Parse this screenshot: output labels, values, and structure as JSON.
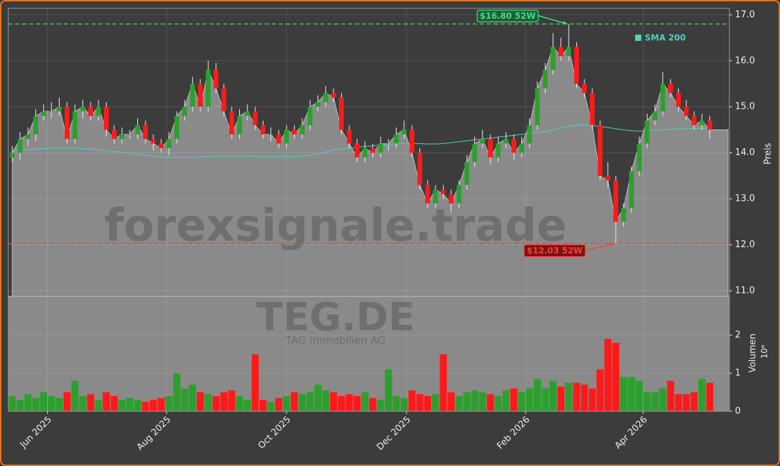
{
  "chart_data": {
    "type": "candlestick",
    "symbol": "TEG.DE",
    "company": "TAG Immobilien AG",
    "watermark": "forexsignale.trade",
    "ylabel": "Preis",
    "up_color": "#2ca02c",
    "down_color": "#ff1a1a",
    "area_color": "#8a8a8a",
    "grid": true,
    "open": [
      13.9,
      14.0,
      14.3,
      14.4,
      14.8,
      14.9,
      14.9,
      15.0,
      14.3,
      14.9,
      15.0,
      14.8,
      15.0,
      14.5,
      14.3,
      14.4,
      14.4,
      14.6,
      14.3,
      14.2,
      14.1,
      14.3,
      14.8,
      15.0,
      15.5,
      15.0,
      15.8,
      15.4,
      14.9,
      14.4,
      14.8,
      14.9,
      14.6,
      14.4,
      14.4,
      14.2,
      14.5,
      14.4,
      14.6,
      15.0,
      15.1,
      15.3,
      15.2,
      14.5,
      14.2,
      13.9,
      14.1,
      14.0,
      14.2,
      14.2,
      14.4,
      14.5,
      14.0,
      13.3,
      12.9,
      13.2,
      13.1,
      12.9,
      13.3,
      13.8,
      14.2,
      14.3,
      13.9,
      14.2,
      14.3,
      14.0,
      14.2,
      14.6,
      15.4,
      15.8,
      16.3,
      16.1,
      16.3,
      15.5,
      15.3,
      14.6,
      13.5,
      13.4,
      12.5,
      12.8,
      13.6,
      14.2,
      14.7,
      14.9,
      15.5,
      15.3,
      15.0,
      14.8,
      14.6,
      14.7
    ],
    "high": [
      14.15,
      14.45,
      14.55,
      14.95,
      15.05,
      15.1,
      15.2,
      15.1,
      15.05,
      15.15,
      15.1,
      15.15,
      15.1,
      14.6,
      14.55,
      14.5,
      14.75,
      14.7,
      14.4,
      14.3,
      14.45,
      14.9,
      15.15,
      15.65,
      15.6,
      16.0,
      15.95,
      15.5,
      15.0,
      14.95,
      15.05,
      15.0,
      14.7,
      14.55,
      14.5,
      14.6,
      14.6,
      14.75,
      15.15,
      15.25,
      15.45,
      15.4,
      15.3,
      14.6,
      14.3,
      14.25,
      14.2,
      14.35,
      14.3,
      14.55,
      14.7,
      14.6,
      14.1,
      13.4,
      13.3,
      13.3,
      13.2,
      13.4,
      13.95,
      14.35,
      14.5,
      14.4,
      14.35,
      14.45,
      14.4,
      14.35,
      14.75,
      15.55,
      15.95,
      16.6,
      16.5,
      16.8,
      16.4,
      15.6,
      15.4,
      14.7,
      13.8,
      13.5,
      12.9,
      13.7,
      14.35,
      14.85,
      15.05,
      15.75,
      15.6,
      15.4,
      15.15,
      14.9,
      14.85,
      14.8
    ],
    "low": [
      13.8,
      13.85,
      14.15,
      14.25,
      14.7,
      14.75,
      14.8,
      14.2,
      14.2,
      14.75,
      14.7,
      14.7,
      14.35,
      14.2,
      14.2,
      14.3,
      14.3,
      14.2,
      14.05,
      14.0,
      13.95,
      14.2,
      14.7,
      14.9,
      14.9,
      14.9,
      15.3,
      14.8,
      14.3,
      14.3,
      14.7,
      14.5,
      14.3,
      14.25,
      14.1,
      14.1,
      14.3,
      14.3,
      14.5,
      14.9,
      15.0,
      15.1,
      14.4,
      14.1,
      13.8,
      13.8,
      13.9,
      13.9,
      14.05,
      14.1,
      14.3,
      13.9,
      13.2,
      12.8,
      12.8,
      13.0,
      12.7,
      12.8,
      13.2,
      13.7,
      14.1,
      13.75,
      13.8,
      14.1,
      13.85,
      13.9,
      14.1,
      14.5,
      15.3,
      15.7,
      16.0,
      16.0,
      15.4,
      15.2,
      14.5,
      13.4,
      13.25,
      12.03,
      12.4,
      12.7,
      13.5,
      14.1,
      14.6,
      14.8,
      15.2,
      14.9,
      14.7,
      14.5,
      14.5,
      14.3
    ],
    "close": [
      14.0,
      14.3,
      14.4,
      14.8,
      14.9,
      14.9,
      15.0,
      14.3,
      14.9,
      15.0,
      14.8,
      15.0,
      14.5,
      14.3,
      14.4,
      14.4,
      14.6,
      14.3,
      14.2,
      14.1,
      14.3,
      14.8,
      15.0,
      15.5,
      15.0,
      15.8,
      15.4,
      14.9,
      14.4,
      14.8,
      14.9,
      14.6,
      14.4,
      14.4,
      14.2,
      14.5,
      14.4,
      14.6,
      15.0,
      15.1,
      15.3,
      15.2,
      14.5,
      14.2,
      13.9,
      14.1,
      14.0,
      14.2,
      14.2,
      14.4,
      14.5,
      14.0,
      13.3,
      12.9,
      13.2,
      13.1,
      12.9,
      13.3,
      13.8,
      14.2,
      14.3,
      13.9,
      14.2,
      14.3,
      14.0,
      14.2,
      14.6,
      15.4,
      15.8,
      16.3,
      16.1,
      16.3,
      15.5,
      15.3,
      14.6,
      13.5,
      13.4,
      12.5,
      12.8,
      13.6,
      14.2,
      14.7,
      14.9,
      15.5,
      15.3,
      15.0,
      14.8,
      14.6,
      14.7,
      14.5
    ],
    "sma": {
      "name": "SMA 200",
      "color": "#4fd1c5",
      "values": [
        14.05,
        14.06,
        14.07,
        14.08,
        14.09,
        14.1,
        14.1,
        14.1,
        14.1,
        14.09,
        14.08,
        14.07,
        14.05,
        14.03,
        14.01,
        13.99,
        13.97,
        13.95,
        13.93,
        13.91,
        13.9,
        13.9,
        13.9,
        13.9,
        13.91,
        13.92,
        13.93,
        13.93,
        13.93,
        13.93,
        13.93,
        13.92,
        13.92,
        13.92,
        13.92,
        13.92,
        13.92,
        13.93,
        13.95,
        13.98,
        14.02,
        14.06,
        14.08,
        14.1,
        14.12,
        14.14,
        14.15,
        14.17,
        14.18,
        14.19,
        14.2,
        14.2,
        14.2,
        14.19,
        14.19,
        14.2,
        14.22,
        14.24,
        14.26,
        14.28,
        14.3,
        14.32,
        14.34,
        14.36,
        14.38,
        14.4,
        14.42,
        14.44,
        14.46,
        14.5,
        14.54,
        14.58,
        14.6,
        14.6,
        14.59,
        14.57,
        14.55,
        14.52,
        14.5,
        14.48,
        14.47,
        14.48,
        14.49,
        14.5,
        14.51,
        14.52,
        14.52,
        14.53,
        14.53,
        14.53
      ]
    },
    "volume": [
      0.4,
      0.3,
      0.45,
      0.35,
      0.5,
      0.4,
      0.35,
      0.5,
      0.8,
      0.4,
      0.45,
      0.3,
      0.5,
      0.4,
      0.3,
      0.35,
      0.3,
      0.25,
      0.3,
      0.35,
      0.4,
      1.0,
      0.6,
      0.7,
      0.5,
      0.45,
      0.4,
      0.5,
      0.55,
      0.4,
      0.3,
      1.5,
      0.3,
      0.25,
      0.35,
      0.4,
      0.5,
      0.45,
      0.5,
      0.7,
      0.55,
      0.5,
      0.4,
      0.45,
      0.4,
      0.5,
      0.35,
      0.3,
      1.1,
      0.4,
      0.35,
      0.55,
      0.45,
      0.4,
      0.45,
      1.5,
      0.5,
      0.4,
      0.5,
      0.55,
      0.5,
      0.45,
      0.4,
      0.55,
      0.6,
      0.5,
      0.6,
      0.85,
      0.6,
      0.8,
      0.65,
      0.75,
      0.75,
      0.7,
      0.6,
      1.1,
      1.9,
      1.8,
      0.9,
      0.9,
      0.8,
      0.5,
      0.5,
      0.6,
      0.8,
      0.45,
      0.45,
      0.5,
      0.85,
      0.75
    ],
    "xlim": [
      -0.5,
      91.5
    ],
    "xticks": [
      {
        "value": 4.5,
        "label": "Jun 2025"
      },
      {
        "value": 19.7,
        "label": "Aug 2025"
      },
      {
        "value": 35.0,
        "label": "Oct 2025"
      },
      {
        "value": 50.3,
        "label": "Dec 2025"
      },
      {
        "value": 65.5,
        "label": "Feb 2026"
      },
      {
        "value": 80.5,
        "label": "Apr 2026"
      }
    ],
    "ylim": [
      10.88,
      17.14
    ],
    "yticks": [
      {
        "value": 11,
        "label": "11.0"
      },
      {
        "value": 12,
        "label": "12.0"
      },
      {
        "value": 13,
        "label": "13.0"
      },
      {
        "value": 14,
        "label": "14.0"
      },
      {
        "value": 15,
        "label": "15.0"
      },
      {
        "value": 16,
        "label": "16.0"
      },
      {
        "value": 17,
        "label": "17.0"
      }
    ],
    "volume_panel": {
      "ylabel": "Volumen",
      "multiplier": "10⁶",
      "ylim": [
        0,
        3.02
      ],
      "yticks": [
        0,
        1,
        2
      ]
    },
    "annotations": [
      {
        "text": "$16.80 52W",
        "value": 16.8,
        "color": "#3ddc84",
        "box": "#1f5f35"
      },
      {
        "text": "$12.03 52W",
        "value": 12.03,
        "color": "#ff3b3b",
        "box": "#7a1414"
      }
    ]
  }
}
